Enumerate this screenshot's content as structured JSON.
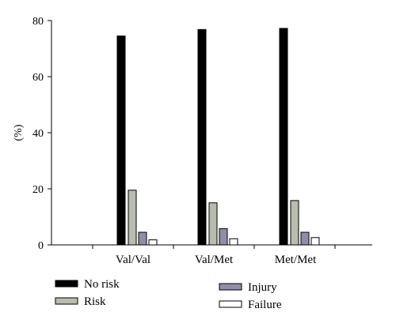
{
  "chart_data": {
    "type": "bar",
    "categories": [
      "Val/Val",
      "Val/Met",
      "Met/Met"
    ],
    "series": [
      {
        "name": "No risk",
        "values": [
          74.5,
          76.8,
          77.2
        ],
        "color": "#000000"
      },
      {
        "name": "Risk",
        "values": [
          19.5,
          15.0,
          15.8
        ],
        "color": "#b8bdb0"
      },
      {
        "name": "Injury",
        "values": [
          4.5,
          5.8,
          4.5
        ],
        "color": "#8e8ea8"
      },
      {
        "name": "Failure",
        "values": [
          1.8,
          2.2,
          2.6
        ],
        "color": "#ffffff"
      }
    ],
    "ylabel": "(%)",
    "ylim": [
      0,
      80
    ],
    "yticks": [
      0,
      20,
      40,
      60,
      80
    ],
    "grid": false,
    "legend_position": "bottom"
  }
}
